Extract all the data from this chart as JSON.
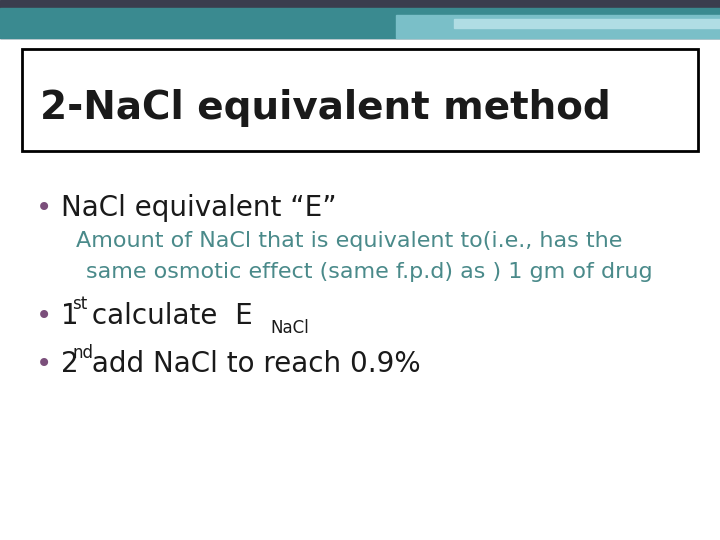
{
  "title": "2-NaCl equivalent method",
  "title_color": "#1a1a1a",
  "title_fontsize": 28,
  "title_box_color": "#000000",
  "bg_color": "#ffffff",
  "header_bar_dark": "#3a3d4e",
  "header_bar_teal": "#3a8a90",
  "header_bar_light_teal": "#7abfc8",
  "header_bar_lightest": "#b0dde4",
  "bullet_color": "#7b4f7b",
  "bullet1_text": "NaCl equivalent “E”",
  "bullet1_color": "#1a1a1a",
  "bullet1_fontsize": 20,
  "sub_text1": "Amount of NaCl that is equivalent to(i.e., has the",
  "sub_text2": "same osmotic effect (same f.p.d) as ) 1 gm of drug",
  "sub_color": "#4a8a8a",
  "sub_fontsize": 16,
  "bullet2_prefix": "1",
  "bullet2_sup": "st",
  "bullet2_main": " calculate  E",
  "bullet2_sub": "NaCl",
  "bullet2_color": "#1a1a1a",
  "bullet2_fontsize": 20,
  "bullet3_prefix": "2",
  "bullet3_sup": "nd",
  "bullet3_main": " add NaCl to reach 0.9%",
  "bullet3_color": "#1a1a1a",
  "bullet3_fontsize": 20
}
